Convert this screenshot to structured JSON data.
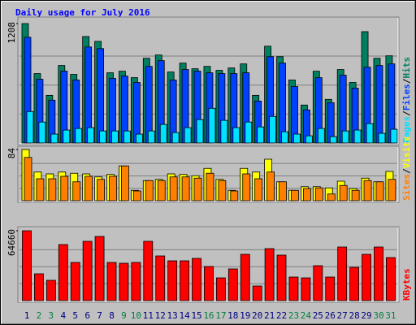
{
  "title": "Daily usage for July 2016",
  "legend_separator": "/",
  "chart_data": [
    {
      "type": "bar",
      "ylim": [
        0,
        1208
      ],
      "yticks": [
        1208
      ],
      "series": [
        {
          "name": "Pages",
          "color": "#00e0ff",
          "values": [
            318,
            212,
            90,
            131,
            147,
            155,
            122,
            122,
            122,
            90,
            122,
            188,
            106,
            155,
            237,
            351,
            229,
            155,
            212,
            163,
            269,
            114,
            90,
            73,
            147,
            65,
            122,
            131,
            196,
            98,
            139
          ]
        },
        {
          "name": "Files",
          "color": "#0040ff",
          "values": [
            1069,
            645,
            433,
            727,
            637,
            971,
            955,
            653,
            677,
            612,
            775,
            833,
            637,
            743,
            727,
            710,
            702,
            702,
            710,
            424,
            873,
            808,
            571,
            335,
            661,
            408,
            686,
            555,
            767,
            784,
            800
          ]
        },
        {
          "name": "Hits",
          "color": "#008060",
          "values": [
            1208,
            702,
            482,
            784,
            694,
            1077,
            1028,
            710,
            726,
            661,
            857,
            890,
            718,
            808,
            751,
            775,
            735,
            759,
            800,
            482,
            979,
            873,
            637,
            384,
            726,
            441,
            743,
            612,
            1126,
            857,
            882
          ]
        }
      ]
    },
    {
      "type": "bar",
      "ylim": [
        0,
        84
      ],
      "yticks": [
        84
      ],
      "series": [
        {
          "name": "Sites",
          "color": "#ff8000",
          "values": [
            71,
            36,
            36,
            40,
            31,
            40,
            35,
            40,
            57,
            16,
            33,
            33,
            39,
            39,
            37,
            45,
            33,
            16,
            44,
            36,
            47,
            31,
            17,
            20,
            21,
            11,
            25,
            17,
            33,
            31,
            35
          ]
        },
        {
          "name": "Visits",
          "color": "#ffff00",
          "values": [
            84,
            47,
            44,
            47,
            45,
            44,
            39,
            43,
            57,
            17,
            33,
            35,
            44,
            43,
            41,
            53,
            35,
            17,
            53,
            47,
            68,
            31,
            17,
            23,
            23,
            21,
            32,
            20,
            37,
            31,
            48
          ]
        }
      ]
    },
    {
      "type": "bar",
      "ylim": [
        0,
        64660
      ],
      "yticks": [
        64660
      ],
      "categories": [
        "1",
        "2",
        "3",
        "4",
        "5",
        "6",
        "7",
        "8",
        "9",
        "10",
        "11",
        "12",
        "13",
        "14",
        "15",
        "16",
        "17",
        "18",
        "19",
        "20",
        "21",
        "22",
        "23",
        "24",
        "25",
        "26",
        "27",
        "28",
        "29",
        "30",
        "31"
      ],
      "category_colors": [
        "#000080",
        "#008040",
        "#008040",
        "#000080",
        "#000080",
        "#000080",
        "#000080",
        "#000080",
        "#008040",
        "#008040",
        "#000080",
        "#000080",
        "#000080",
        "#000080",
        "#000080",
        "#008040",
        "#008040",
        "#000080",
        "#000080",
        "#000080",
        "#000080",
        "#000080",
        "#008040",
        "#008040",
        "#000080",
        "#000080",
        "#000080",
        "#000080",
        "#000080",
        "#008040",
        "#008040"
      ],
      "series": [
        {
          "name": "KBytes",
          "color": "#ff0000",
          "values": [
            64660,
            24811,
            18796,
            51878,
            35337,
            54886,
            59397,
            35337,
            34586,
            35337,
            54886,
            41352,
            36841,
            36841,
            39097,
            31578,
            21052,
            29323,
            42856,
            13533,
            48119,
            42104,
            21804,
            21052,
            32330,
            21804,
            49623,
            30826,
            42856,
            49623,
            39848
          ]
        }
      ]
    }
  ]
}
